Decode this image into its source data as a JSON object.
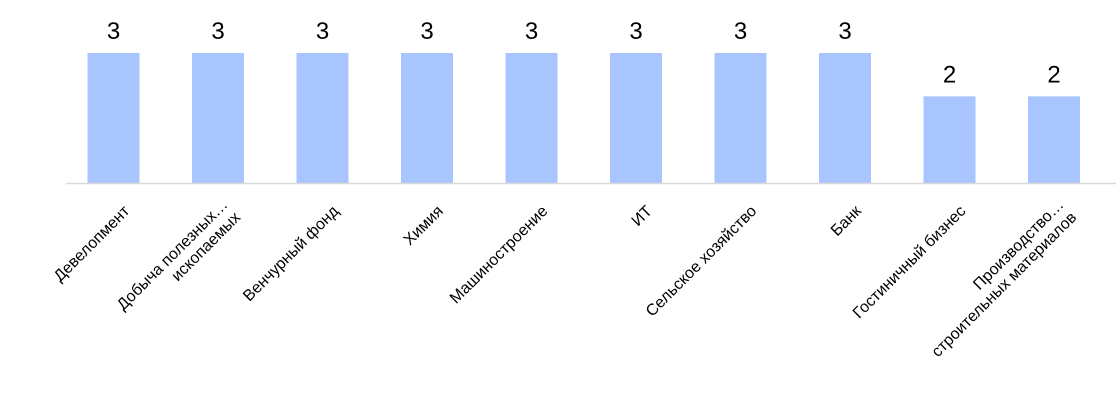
{
  "chart_data": {
    "type": "bar",
    "categories": [
      [
        "Девелопмент"
      ],
      [
        "Добыча полезных…",
        "ископаемых"
      ],
      [
        "Венчурный фонд"
      ],
      [
        "Химия"
      ],
      [
        "Машиностроение"
      ],
      [
        "ИТ"
      ],
      [
        "Сельское хозяйство"
      ],
      [
        "Банк"
      ],
      [
        "Гостиничный бизнес"
      ],
      [
        "Производство…",
        "строительных материалов"
      ]
    ],
    "values": [
      3,
      3,
      3,
      3,
      3,
      3,
      3,
      3,
      2,
      2
    ],
    "ylim": [
      0,
      3
    ],
    "grid": false,
    "legend": "none",
    "bar_color": "#a9c5ff",
    "axis_color": "#d9d9d9"
  }
}
